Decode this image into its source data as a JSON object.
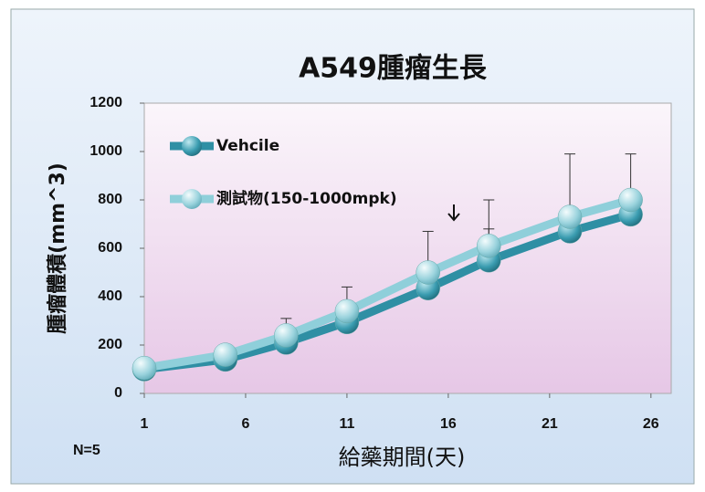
{
  "chart_data": {
    "type": "line",
    "title": "A549腫瘤生長",
    "x_label": "給藥期間(天)",
    "y_label": "腫瘤體積(mm^3)",
    "annotation": "N=5",
    "x": [
      1,
      5,
      8,
      11,
      15,
      18,
      22,
      25
    ],
    "series": [
      {
        "name": "Vehcile",
        "color": "#2f8fa4",
        "values": [
          100,
          140,
          210,
          295,
          435,
          550,
          670,
          740
        ],
        "errors": [
          null,
          null,
          null,
          null,
          null,
          130,
          null,
          null
        ]
      },
      {
        "name": "測試物(150-1000mpk)",
        "color": "#8fcfda",
        "values": [
          105,
          160,
          240,
          340,
          500,
          610,
          730,
          800
        ],
        "errors": [
          null,
          null,
          70,
          100,
          170,
          190,
          260,
          190
        ]
      }
    ],
    "xlim": [
      1,
      27
    ],
    "xticks": [
      1,
      6,
      11,
      16,
      21,
      26
    ],
    "ylim": [
      0,
      1200
    ],
    "yticks": [
      0,
      200,
      400,
      600,
      800,
      1000,
      1200
    ],
    "legend": "upper left"
  }
}
